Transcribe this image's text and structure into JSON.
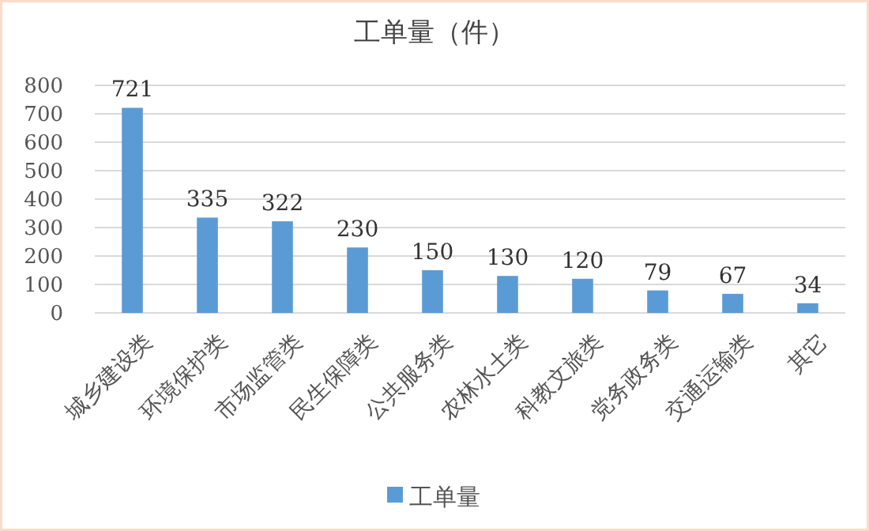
{
  "chart_data": {
    "type": "bar",
    "title": "工单量（件）",
    "categories": [
      "城乡建设类",
      "环境保护类",
      "市场监管类",
      "民生保障类",
      "公共服务类",
      "农林水土类",
      "科教文旅类",
      "党务政务类",
      "交通运输类",
      "其它"
    ],
    "series": [
      {
        "name": "工单量",
        "color": "#5b9bd5",
        "values": [
          721,
          335,
          322,
          230,
          150,
          130,
          120,
          79,
          67,
          34
        ]
      }
    ],
    "ylim": [
      0,
      800
    ],
    "yticks": [
      0,
      100,
      200,
      300,
      400,
      500,
      600,
      700,
      800
    ],
    "grid": "y",
    "data_labels": true,
    "legend": "bottom"
  }
}
